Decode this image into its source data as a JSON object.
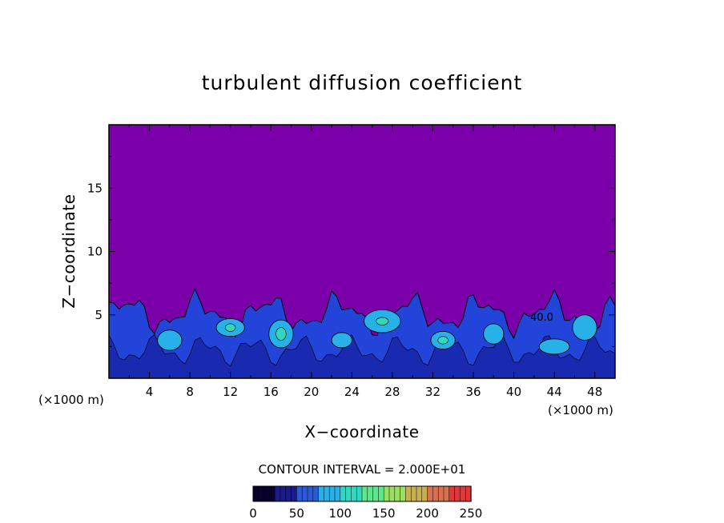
{
  "chart_data": {
    "type": "heatmap",
    "title": "turbulent diffusion coefficient",
    "xlabel": "X−coordinate",
    "ylabel": "Z−coordinate",
    "x_unit_left": "(×1000 m)",
    "x_unit_right": "(×1000 m)",
    "xlim": [
      0,
      50
    ],
    "ylim": [
      0,
      20
    ],
    "x_ticks": [
      4,
      8,
      12,
      16,
      20,
      24,
      28,
      32,
      36,
      40,
      44,
      48
    ],
    "y_ticks": [
      5,
      10,
      15
    ],
    "background_value": 0,
    "background_color": "#7b00aa",
    "turbulent_layer_top_approx": 6.5,
    "contour_interval_text": "CONTOUR INTERVAL = 2.000E+01",
    "contour_interval": 20,
    "contour_annotation": "40.0",
    "colorbar": {
      "min": 0,
      "max": 250,
      "tick_labels": [
        "0",
        "50",
        "100",
        "150",
        "200",
        "250"
      ],
      "colors": [
        "#0a0030",
        "#1a1a8a",
        "#2a5ad8",
        "#28b0e8",
        "#30d8c0",
        "#5ee68a",
        "#9ae060",
        "#c8b050",
        "#d87050",
        "#e03838"
      ]
    }
  }
}
